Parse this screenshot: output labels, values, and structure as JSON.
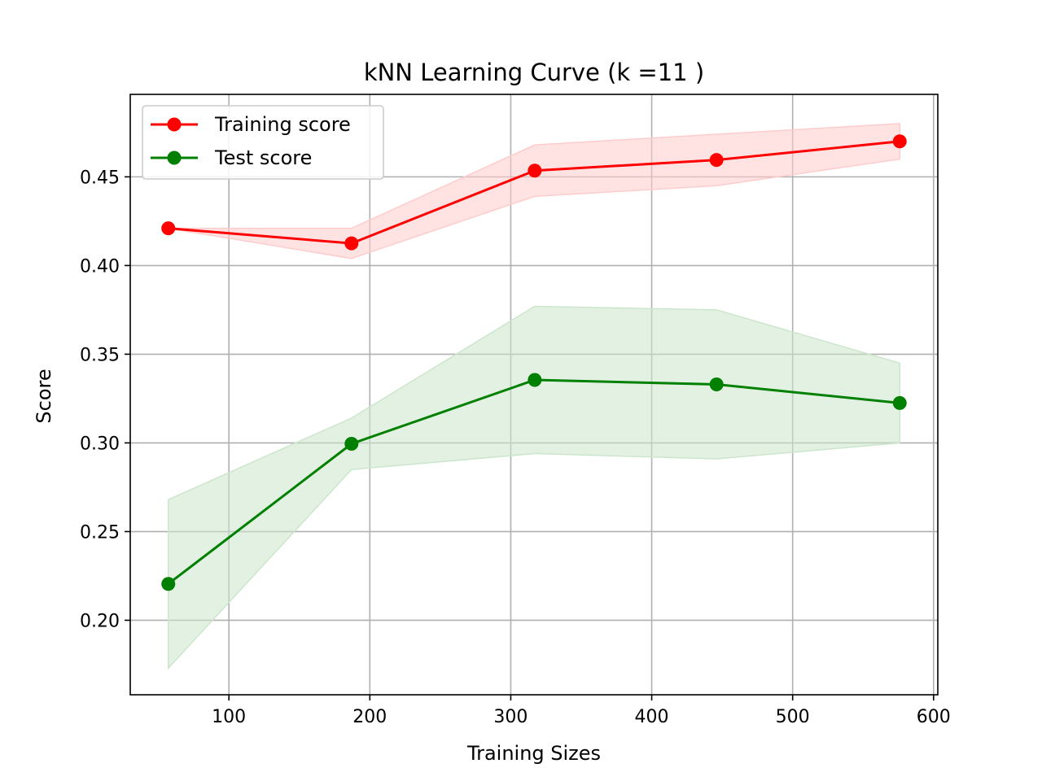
{
  "chart_data": {
    "type": "line",
    "title": "kNN Learning Curve (k =11 )",
    "xlabel": "Training Sizes",
    "ylabel": "Score",
    "xlim": [
      30,
      603
    ],
    "ylim": [
      0.158,
      0.4965
    ],
    "xticks": [
      100,
      200,
      300,
      400,
      500,
      600
    ],
    "xtick_labels": [
      "100",
      "200",
      "300",
      "400",
      "500",
      "600"
    ],
    "yticks": [
      0.2,
      0.25,
      0.3,
      0.35,
      0.4,
      0.45
    ],
    "ytick_labels": [
      "0.20",
      "0.25",
      "0.30",
      "0.35",
      "0.40",
      "0.45"
    ],
    "grid": true,
    "legend_position": "upper-left",
    "x": [
      57,
      187,
      317,
      446,
      576
    ],
    "series": [
      {
        "name": "Training score",
        "color": "#ff0000",
        "band_color": "#ffcccc",
        "values": [
          0.421,
          0.4125,
          0.4535,
          0.4595,
          0.47
        ],
        "upper": [
          0.421,
          0.421,
          0.468,
          0.474,
          0.48
        ],
        "lower": [
          0.421,
          0.404,
          0.439,
          0.445,
          0.46
        ]
      },
      {
        "name": "Test score",
        "color": "#008000",
        "band_color": "#cce6cc",
        "values": [
          0.2205,
          0.2995,
          0.3355,
          0.333,
          0.3225
        ],
        "upper": [
          0.268,
          0.314,
          0.377,
          0.375,
          0.345
        ],
        "lower": [
          0.173,
          0.285,
          0.294,
          0.291,
          0.3
        ]
      }
    ]
  }
}
